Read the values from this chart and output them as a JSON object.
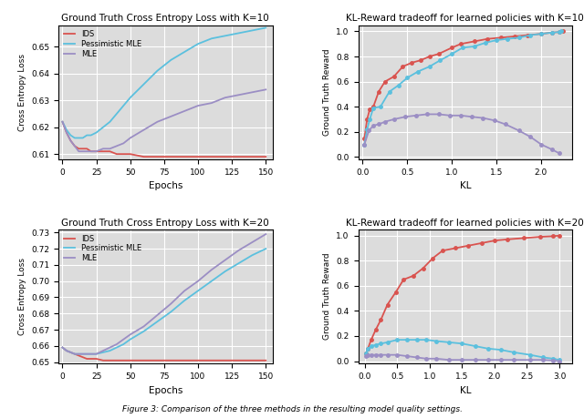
{
  "fig_width": 6.4,
  "fig_height": 4.59,
  "bg_color": "#dcdcdc",
  "colors": {
    "IDS": "#d9534f",
    "Pessimistic_MLE": "#5bc0de",
    "MLE": "#9b8ec4"
  },
  "top_left": {
    "title": "Ground Truth Cross Entropy Loss with K=10",
    "xlabel": "Epochs",
    "ylabel": "Cross Entropy Loss",
    "epochs": [
      0,
      3,
      6,
      9,
      12,
      15,
      18,
      21,
      25,
      30,
      35,
      40,
      45,
      50,
      60,
      70,
      80,
      90,
      100,
      110,
      120,
      130,
      140,
      150
    ],
    "IDS": [
      0.622,
      0.618,
      0.615,
      0.613,
      0.612,
      0.612,
      0.612,
      0.611,
      0.611,
      0.611,
      0.611,
      0.61,
      0.61,
      0.61,
      0.609,
      0.609,
      0.609,
      0.609,
      0.609,
      0.609,
      0.609,
      0.609,
      0.609,
      0.609
    ],
    "Pessimistic_MLE": [
      0.622,
      0.619,
      0.617,
      0.616,
      0.616,
      0.616,
      0.617,
      0.617,
      0.618,
      0.62,
      0.622,
      0.625,
      0.628,
      0.631,
      0.636,
      0.641,
      0.645,
      0.648,
      0.651,
      0.653,
      0.654,
      0.655,
      0.656,
      0.657
    ],
    "MLE": [
      0.622,
      0.618,
      0.615,
      0.613,
      0.611,
      0.611,
      0.611,
      0.611,
      0.611,
      0.612,
      0.612,
      0.613,
      0.614,
      0.616,
      0.619,
      0.622,
      0.624,
      0.626,
      0.628,
      0.629,
      0.631,
      0.632,
      0.633,
      0.634
    ],
    "ylim": [
      0.608,
      0.658
    ],
    "yticks": [
      0.61,
      0.62,
      0.63,
      0.64,
      0.65
    ],
    "xticks": [
      0,
      25,
      50,
      75,
      100,
      125,
      150
    ]
  },
  "top_right": {
    "title": "KL-Reward tradeoff for learned policies with K=10",
    "xlabel": "KL",
    "ylabel": "Ground Truth Reward",
    "IDS_kl": [
      0.02,
      0.05,
      0.08,
      0.12,
      0.18,
      0.25,
      0.35,
      0.45,
      0.55,
      0.65,
      0.75,
      0.85,
      1.0,
      1.1,
      1.25,
      1.4,
      1.55,
      1.7,
      1.85,
      2.0,
      2.12,
      2.2,
      2.25
    ],
    "IDS_r": [
      0.15,
      0.3,
      0.38,
      0.4,
      0.52,
      0.6,
      0.64,
      0.72,
      0.75,
      0.77,
      0.8,
      0.82,
      0.87,
      0.9,
      0.92,
      0.94,
      0.95,
      0.96,
      0.97,
      0.98,
      0.99,
      0.995,
      1.0
    ],
    "PMLE_kl": [
      0.02,
      0.05,
      0.08,
      0.12,
      0.2,
      0.3,
      0.4,
      0.5,
      0.62,
      0.75,
      0.87,
      1.0,
      1.12,
      1.25,
      1.38,
      1.5,
      1.62,
      1.75,
      1.88,
      2.0,
      2.12,
      2.2,
      2.23
    ],
    "PMLE_r": [
      0.1,
      0.22,
      0.3,
      0.39,
      0.4,
      0.52,
      0.57,
      0.63,
      0.68,
      0.72,
      0.77,
      0.82,
      0.87,
      0.88,
      0.91,
      0.93,
      0.94,
      0.95,
      0.97,
      0.98,
      0.99,
      0.995,
      1.0
    ],
    "MLE_kl": [
      0.02,
      0.07,
      0.12,
      0.18,
      0.25,
      0.35,
      0.48,
      0.6,
      0.72,
      0.85,
      0.98,
      1.1,
      1.22,
      1.35,
      1.48,
      1.6,
      1.75,
      1.88,
      2.0,
      2.12,
      2.2
    ],
    "MLE_r": [
      0.1,
      0.21,
      0.25,
      0.26,
      0.28,
      0.3,
      0.32,
      0.33,
      0.34,
      0.34,
      0.33,
      0.33,
      0.32,
      0.31,
      0.29,
      0.26,
      0.21,
      0.16,
      0.1,
      0.06,
      0.03
    ],
    "ylim": [
      -0.02,
      1.05
    ],
    "yticks": [
      0.0,
      0.2,
      0.4,
      0.6,
      0.8,
      1.0
    ],
    "xlim": [
      -0.05,
      2.35
    ],
    "xticks": [
      0.0,
      0.5,
      1.0,
      1.5,
      2.0
    ]
  },
  "bottom_left": {
    "title": "Ground Truth Cross Entropy Loss with K=20",
    "xlabel": "Epochs",
    "ylabel": "Cross Entropy Loss",
    "epochs": [
      0,
      3,
      6,
      9,
      12,
      15,
      18,
      21,
      25,
      30,
      35,
      40,
      45,
      50,
      60,
      70,
      80,
      90,
      100,
      110,
      120,
      130,
      140,
      150
    ],
    "IDS": [
      0.659,
      0.657,
      0.656,
      0.655,
      0.654,
      0.653,
      0.652,
      0.652,
      0.652,
      0.651,
      0.651,
      0.651,
      0.651,
      0.651,
      0.651,
      0.651,
      0.651,
      0.651,
      0.651,
      0.651,
      0.651,
      0.651,
      0.651,
      0.651
    ],
    "Pessimistic_MLE": [
      0.659,
      0.657,
      0.656,
      0.655,
      0.655,
      0.655,
      0.655,
      0.655,
      0.655,
      0.656,
      0.657,
      0.659,
      0.661,
      0.664,
      0.669,
      0.675,
      0.681,
      0.688,
      0.694,
      0.7,
      0.706,
      0.711,
      0.716,
      0.72
    ],
    "MLE": [
      0.659,
      0.657,
      0.656,
      0.655,
      0.655,
      0.655,
      0.655,
      0.655,
      0.655,
      0.657,
      0.659,
      0.661,
      0.664,
      0.667,
      0.672,
      0.679,
      0.686,
      0.694,
      0.7,
      0.707,
      0.713,
      0.719,
      0.724,
      0.729
    ],
    "ylim": [
      0.649,
      0.732
    ],
    "yticks": [
      0.65,
      0.66,
      0.67,
      0.68,
      0.69,
      0.7,
      0.71,
      0.72,
      0.73
    ],
    "xticks": [
      0,
      25,
      50,
      75,
      100,
      125,
      150
    ]
  },
  "bottom_right": {
    "title": "KL-Reward tradeoff for learned policies with K=20",
    "xlabel": "KL",
    "ylabel": "Ground Truth Reward",
    "IDS_kl": [
      0.02,
      0.05,
      0.1,
      0.17,
      0.25,
      0.35,
      0.48,
      0.6,
      0.75,
      0.9,
      1.05,
      1.2,
      1.4,
      1.6,
      1.8,
      2.0,
      2.2,
      2.45,
      2.7,
      2.9,
      3.0
    ],
    "IDS_r": [
      0.06,
      0.1,
      0.17,
      0.25,
      0.33,
      0.45,
      0.55,
      0.65,
      0.68,
      0.74,
      0.82,
      0.88,
      0.9,
      0.92,
      0.94,
      0.96,
      0.97,
      0.98,
      0.99,
      0.995,
      1.0
    ],
    "PMLE_kl": [
      0.02,
      0.05,
      0.1,
      0.17,
      0.25,
      0.35,
      0.5,
      0.65,
      0.8,
      0.95,
      1.1,
      1.3,
      1.5,
      1.7,
      1.9,
      2.1,
      2.3,
      2.55,
      2.75,
      2.9,
      3.0
    ],
    "PMLE_r": [
      0.06,
      0.1,
      0.12,
      0.13,
      0.14,
      0.15,
      0.17,
      0.17,
      0.17,
      0.17,
      0.16,
      0.15,
      0.14,
      0.12,
      0.1,
      0.09,
      0.07,
      0.05,
      0.03,
      0.02,
      0.01
    ],
    "MLE_kl": [
      0.02,
      0.05,
      0.1,
      0.17,
      0.25,
      0.35,
      0.5,
      0.65,
      0.8,
      0.95,
      1.1,
      1.3,
      1.5,
      1.7,
      1.9,
      2.1,
      2.3,
      2.55,
      2.75,
      2.9,
      3.0
    ],
    "MLE_r": [
      0.04,
      0.05,
      0.05,
      0.05,
      0.05,
      0.05,
      0.05,
      0.04,
      0.03,
      0.02,
      0.02,
      0.01,
      0.01,
      0.01,
      0.01,
      0.01,
      0.01,
      0.01,
      0.01,
      0.005,
      0.0
    ],
    "ylim": [
      -0.02,
      1.05
    ],
    "yticks": [
      0.0,
      0.2,
      0.4,
      0.6,
      0.8,
      1.0
    ],
    "xlim": [
      -0.1,
      3.2
    ],
    "xticks": [
      0.0,
      0.5,
      1.0,
      1.5,
      2.0,
      2.5,
      3.0
    ]
  },
  "caption": "Figure 3: Comparison of the three methods in the resulting model quality settings.",
  "legend_labels": [
    "IDS",
    "Pessimistic MLE",
    "MLE"
  ]
}
